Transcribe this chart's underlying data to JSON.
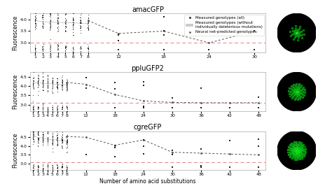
{
  "panels": [
    {
      "title": "amacGFP",
      "violin_color": "#aaaaaa",
      "violin_positions": [
        1,
        2,
        3,
        4,
        5,
        6,
        7,
        8
      ],
      "ylim": [
        2.6,
        4.25
      ],
      "yticks": [
        3.0,
        3.5,
        4.0
      ],
      "threshold": 3.0,
      "scatter_black_x": [
        12,
        12,
        12,
        18,
        18,
        18,
        18,
        24,
        24,
        24,
        24,
        30,
        30
      ],
      "scatter_black_y": [
        3.35,
        3.1,
        2.72,
        4.1,
        3.5,
        3.35,
        2.72,
        2.72,
        2.72,
        2.72,
        2.72,
        3.5,
        2.72
      ],
      "line_x": [
        8,
        12,
        18,
        24,
        30
      ],
      "line_y": [
        3.95,
        3.4,
        3.5,
        3.0,
        3.5
      ],
      "xtick_labels": [
        "1",
        "2",
        "3",
        "4",
        "5",
        "6",
        "7",
        "8",
        "12",
        "18",
        "24",
        "30"
      ],
      "xtick_pos": [
        1,
        2,
        3,
        4,
        5,
        6,
        7,
        8,
        12,
        18,
        24,
        30
      ],
      "violin_medians": [
        3.95,
        3.9,
        3.88,
        3.87,
        3.86,
        3.85,
        3.84,
        3.83
      ]
    },
    {
      "title": "ppluGFP2",
      "violin_color": "#aaaaaa",
      "violin_positions": [
        1,
        2,
        3,
        4,
        5,
        6,
        7,
        8
      ],
      "ylim": [
        2.65,
        4.75
      ],
      "yticks": [
        3.0,
        3.5,
        4.0,
        4.5
      ],
      "threshold": 3.1,
      "scatter_black_x": [
        12,
        12,
        18,
        18,
        18,
        24,
        24,
        24,
        24,
        24,
        30,
        30,
        36,
        36,
        42,
        42,
        48,
        48
      ],
      "scatter_black_y": [
        4.45,
        3.9,
        4.2,
        3.85,
        2.82,
        4.25,
        4.05,
        2.9,
        2.82,
        2.82,
        3.35,
        2.82,
        3.9,
        2.82,
        2.82,
        2.82,
        3.4,
        2.82
      ],
      "line_x": [
        8,
        12,
        18,
        24,
        30,
        36,
        42,
        48
      ],
      "line_y": [
        4.2,
        4.1,
        3.55,
        3.2,
        3.12,
        3.1,
        3.1,
        3.1
      ],
      "xtick_labels": [
        "1",
        "2",
        "3",
        "4",
        "5",
        "6",
        "7",
        "8",
        "12",
        "18",
        "24",
        "30",
        "36",
        "42",
        "48"
      ],
      "xtick_pos": [
        1,
        2,
        3,
        4,
        5,
        6,
        7,
        8,
        12,
        18,
        24,
        30,
        36,
        42,
        48
      ],
      "violin_medians": [
        4.2,
        4.18,
        4.16,
        4.14,
        4.12,
        4.1,
        4.08,
        4.06
      ]
    },
    {
      "title": "cgreGFP",
      "violin_color": "#7ecec4",
      "violin_positions": [
        1,
        2,
        3,
        4,
        5,
        6,
        7,
        8
      ],
      "ylim": [
        2.65,
        4.85
      ],
      "yticks": [
        3.0,
        3.5,
        4.0,
        4.5
      ],
      "threshold": 3.1,
      "scatter_black_x": [
        12,
        18,
        18,
        18,
        24,
        24,
        24,
        30,
        30,
        30,
        36,
        36,
        36,
        42,
        42,
        48,
        48,
        48
      ],
      "scatter_black_y": [
        3.5,
        4.05,
        3.9,
        3.4,
        4.35,
        4.0,
        3.55,
        3.75,
        3.5,
        2.82,
        3.85,
        2.9,
        2.82,
        4.3,
        2.82,
        4.4,
        4.0,
        2.82
      ],
      "line_x": [
        8,
        12,
        18,
        24,
        30,
        36,
        42,
        48
      ],
      "line_y": [
        4.55,
        4.5,
        4.05,
        4.35,
        3.65,
        3.6,
        3.55,
        3.5
      ],
      "xtick_labels": [
        "1",
        "2",
        "3",
        "4",
        "5",
        "6",
        "7",
        "8",
        "12",
        "18",
        "24",
        "30",
        "36",
        "42",
        "48"
      ],
      "xtick_pos": [
        1,
        2,
        3,
        4,
        5,
        6,
        7,
        8,
        12,
        18,
        24,
        30,
        36,
        42,
        48
      ],
      "violin_medians": [
        4.55,
        4.5,
        4.45,
        4.4,
        4.38,
        4.35,
        4.3,
        4.28
      ],
      "xlabel": "Number of amino acid substitutions"
    }
  ],
  "ylabel": "Fluorescence",
  "legend_fontsize": 4.0,
  "title_fontsize": 7,
  "tick_fontsize": 4.5,
  "gfp_images": [
    {
      "n_dots_rings": [
        1,
        6,
        8,
        10
      ],
      "radii": [
        0.0,
        0.13,
        0.24,
        0.36
      ],
      "brightness_scale": 0.7
    },
    {
      "n_dots_rings": [
        1,
        6,
        10,
        14,
        18
      ],
      "radii": [
        0.0,
        0.12,
        0.22,
        0.32,
        0.41
      ],
      "brightness_scale": 0.85
    },
    {
      "n_dots_rings": [
        1,
        6,
        10,
        14,
        18,
        22
      ],
      "radii": [
        0.0,
        0.1,
        0.2,
        0.29,
        0.38,
        0.46
      ],
      "brightness_scale": 1.0
    }
  ]
}
